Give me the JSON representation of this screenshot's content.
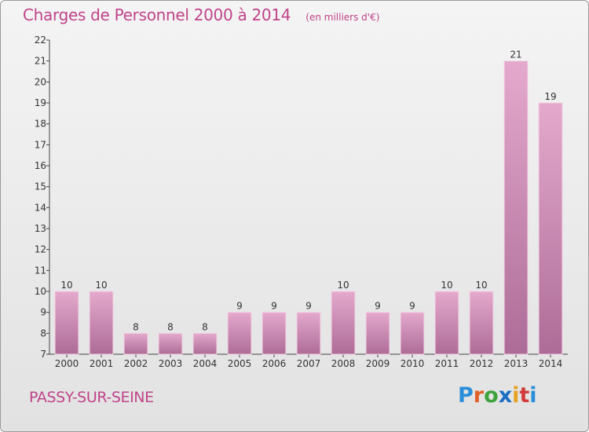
{
  "header": {
    "title": "Charges de Personnel 2000 à 2014",
    "subtitle": "(en milliers d'€)"
  },
  "footer": {
    "town": "PASSY-SUR-SEINE",
    "logo_text": "Proxiti"
  },
  "colors": {
    "accent": "#c0448a",
    "bar_light": "#e2a6cb",
    "bar_dark": "#b0709a",
    "axis": "#444444"
  },
  "chart_data": {
    "type": "bar",
    "title": "Charges de Personnel 2000 à 2014",
    "subtitle": "(en milliers d'€)",
    "categories": [
      "2000",
      "2001",
      "2002",
      "2003",
      "2004",
      "2005",
      "2006",
      "2007",
      "2008",
      "2009",
      "2010",
      "2011",
      "2012",
      "2013",
      "2014"
    ],
    "values": [
      10,
      10,
      8,
      8,
      8,
      9,
      9,
      9,
      10,
      9,
      9,
      10,
      10,
      21,
      19
    ],
    "ylim": [
      7,
      22
    ],
    "yticks": [
      7,
      8,
      9,
      10,
      11,
      12,
      13,
      14,
      15,
      16,
      17,
      18,
      19,
      20,
      21,
      22
    ],
    "grid": false,
    "data_labels": true
  }
}
